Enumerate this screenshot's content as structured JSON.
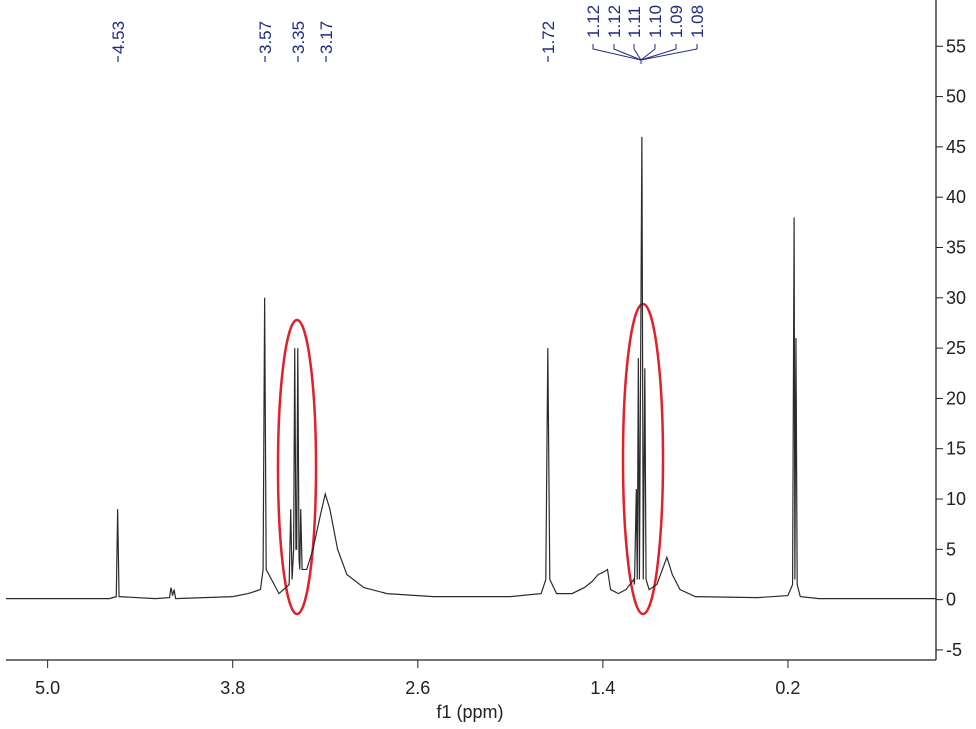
{
  "chart_data": {
    "type": "line",
    "xlabel": "f1 (ppm)",
    "peak_labels": [
      "4.53",
      "3.57",
      "3.35",
      "3.17",
      "1.72",
      "1.12",
      "1.12",
      "1.11",
      "1.10",
      "1.09",
      "1.08"
    ],
    "x": [
      5.27,
      4.6,
      4.555,
      4.546,
      4.537,
      4.3,
      4.21,
      4.2,
      4.19,
      4.18,
      4.17,
      3.8,
      3.7,
      3.62,
      3.603,
      3.593,
      3.583,
      3.5,
      3.434,
      3.424,
      3.415,
      3.405,
      3.398,
      3.39,
      3.385,
      3.378,
      3.37,
      3.365,
      3.359,
      3.35,
      3.32,
      3.28,
      3.23,
      3.2,
      3.17,
      3.12,
      3.06,
      2.95,
      2.8,
      2.5,
      2.0,
      1.8,
      1.77,
      1.757,
      1.744,
      1.7,
      1.6,
      1.52,
      1.47,
      1.43,
      1.4,
      1.37,
      1.35,
      1.3,
      1.25,
      1.2,
      1.195,
      1.183,
      1.177,
      1.17,
      1.163,
      1.147,
      1.138,
      1.128,
      1.12,
      1.1,
      1.05,
      0.985,
      0.97,
      0.95,
      0.9,
      0.8,
      0.4,
      0.2,
      0.17,
      0.16,
      0.155,
      0.148,
      0.14,
      0.12,
      0.0,
      -0.76
    ],
    "series": [
      {
        "color": "#2b2b2b",
        "values": [
          0.1,
          0.1,
          0.3,
          9,
          0.3,
          0.1,
          0.2,
          1.2,
          0.4,
          1.0,
          0.1,
          0.3,
          0.6,
          1.0,
          3,
          30,
          3,
          0.6,
          1.5,
          9,
          2,
          5,
          25,
          5,
          5,
          25,
          4,
          3,
          9,
          3,
          3,
          5,
          8.5,
          10.5,
          9,
          5,
          2.5,
          1.2,
          0.6,
          0.3,
          0.3,
          0.6,
          2,
          25,
          2,
          0.6,
          0.6,
          1.2,
          1.8,
          2.5,
          2.7,
          3,
          1,
          0.6,
          1,
          2,
          1.5,
          11,
          2,
          24,
          2,
          46,
          2,
          23,
          2,
          1,
          1.5,
          4.2,
          3.5,
          2.5,
          1,
          0.3,
          0.2,
          0.4,
          1.5,
          38,
          2,
          26,
          1.5,
          0.3,
          0.1,
          0.1
        ]
      }
    ],
    "xlim": [
      5.27,
      -0.76
    ],
    "ylim": [
      -6,
      59.6
    ],
    "xticks": [
      {
        "value": 5,
        "label": "5.0"
      },
      3.8,
      2.6,
      1.4,
      0.2
    ],
    "yticks": [
      -5,
      0,
      5,
      10,
      15,
      20,
      25,
      30,
      35,
      40,
      45,
      50,
      55
    ]
  }
}
